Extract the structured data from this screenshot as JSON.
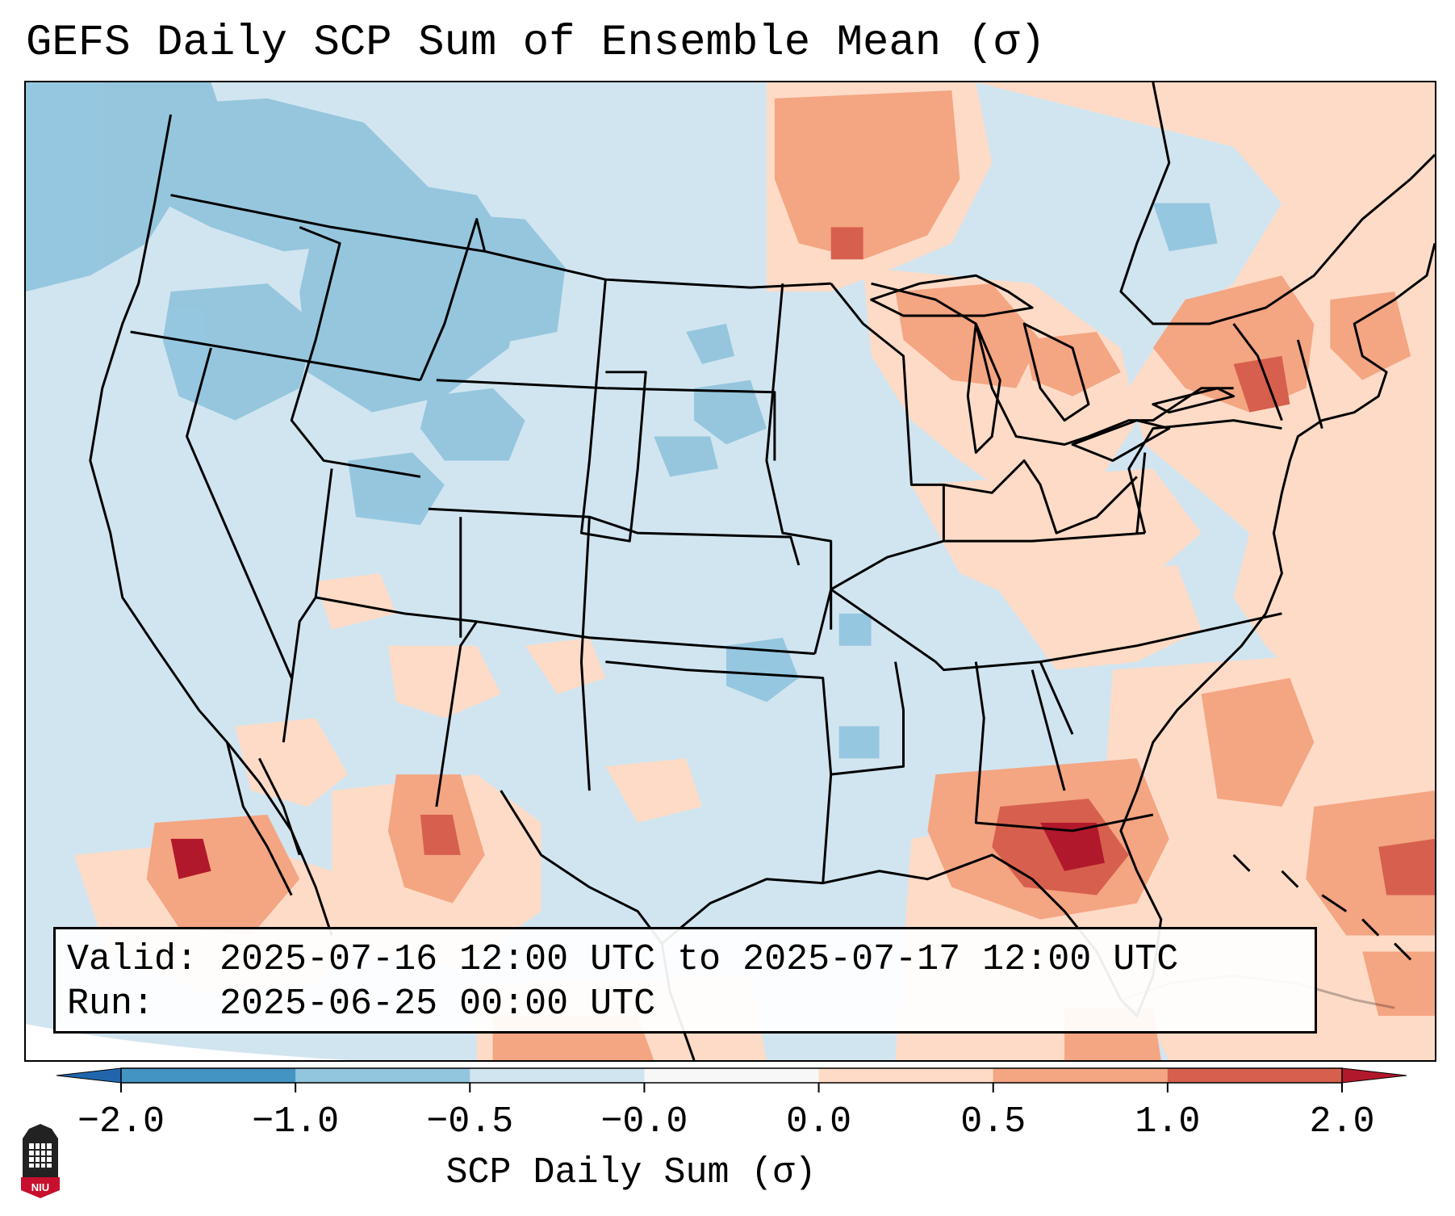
{
  "title": "GEFS Daily SCP Sum of Ensemble Mean (σ)",
  "valid_line": "Valid: 2025-07-16 12:00 UTC to 2025-07-17 12:00 UTC",
  "run_line": "Run:   2025-06-25 00:00 UTC",
  "colorbar": {
    "label": "SCP Daily Sum (σ)",
    "ticks": [
      "−2.0",
      "−1.0",
      "−0.5",
      "−0.0",
      "0.0",
      "0.5",
      "1.0",
      "2.0"
    ],
    "colors": [
      "#4393c3",
      "#92c5de",
      "#d1e5f0",
      "#f7f7f7",
      "#fddbc7",
      "#f4a582",
      "#d6604d"
    ],
    "under_color": "#2166ac",
    "over_color": "#b2182b"
  },
  "map": {
    "projection": "Lambert Conformal, CONUS",
    "background_color": "#d1e5f0",
    "regions": [
      {
        "name": "Pacific Northwest",
        "category": "-1.0 to -0.5",
        "color": "#92c5de"
      },
      {
        "name": "Northern Rockies",
        "category": "-1.0 to -0.5",
        "color": "#92c5de"
      },
      {
        "name": "Central Plains",
        "category": "-0.5 to -0.0",
        "color": "#d1e5f0"
      },
      {
        "name": "Southern Ontario / Upper Great Lakes",
        "category": "0.5 to 1.0",
        "color": "#f4a582"
      },
      {
        "name": "Northeast / New York",
        "category": "0.5 to 1.0",
        "color": "#f4a582"
      },
      {
        "name": "Florida / Eastern Gulf",
        "category": "1.0 to 2.0",
        "color": "#d6604d"
      },
      {
        "name": "Gulf of California / Baja",
        "category": "0.5 to 1.0",
        "color": "#f4a582"
      },
      {
        "name": "Western Atlantic",
        "category": "0.0 to 0.5",
        "color": "#fddbc7"
      }
    ]
  },
  "logo": {
    "text": "NIU"
  }
}
